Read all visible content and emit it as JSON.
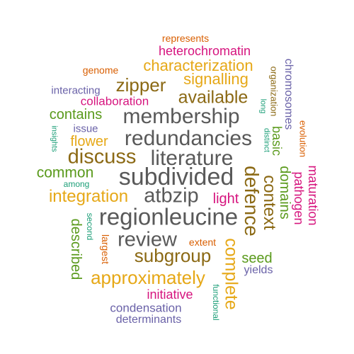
{
  "palette": {
    "gray": "#595959",
    "brown": "#8b6914",
    "orange": "#e6a817",
    "green": "#5a9a1c",
    "teal": "#1b9e77",
    "purple": "#6a62a8",
    "pink": "#d6147e",
    "rust": "#d95f02"
  },
  "words": {
    "subdivided": "subdivided",
    "regionleucine": "regionleucine",
    "literature": "literature",
    "redundancies": "redundancies",
    "membership": "membership",
    "atbzip": "atbzip",
    "review": "review",
    "discuss": "discuss",
    "defence": "defence",
    "context": "context",
    "subgroup": "subgroup",
    "approximately": "approximately",
    "complete": "complete",
    "zipper": "zipper",
    "available": "available",
    "characterization": "characterization",
    "integration": "integration",
    "signalling": "signalling",
    "domains": "domains",
    "basic": "basic",
    "common": "common",
    "contains": "contains",
    "flower": "flower",
    "pathogen": "pathogen",
    "maturation": "maturation",
    "light": "light",
    "heterochromatin": "heterochromatin",
    "described": "described",
    "seed": "seed",
    "initiative": "initiative",
    "collaboration": "collaboration",
    "condensation": "condensation",
    "determinants": "determinants",
    "chromosomes": "chromosomes",
    "interacting": "interacting",
    "issue": "issue",
    "yields": "yields",
    "largest": "largest",
    "genome": "genome",
    "represents": "represents",
    "extent": "extent",
    "organization": "organization",
    "evolution": "evolution",
    "among": "among",
    "insights": "insights",
    "second": "second",
    "long": "long",
    "distinct": "distinct",
    "functional": "functional"
  }
}
